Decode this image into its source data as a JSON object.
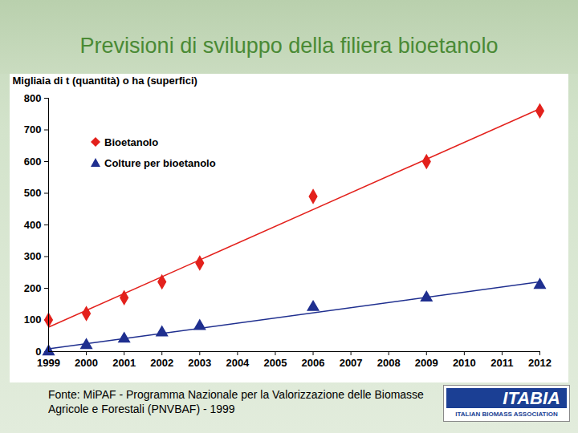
{
  "chart_data": {
    "type": "scatter",
    "title": "Previsioni di sviluppo della filiera bioetanolo",
    "y_label": "Migliaia di t (quantità) o ha (superfici)",
    "x": [
      1999,
      2000,
      2001,
      2002,
      2003,
      2006,
      2009,
      2012
    ],
    "series": [
      {
        "name": "Bioetanolo",
        "color": "#e3211c",
        "marker": "diamond",
        "line_style": "solid",
        "values": [
          100,
          120,
          170,
          220,
          280,
          490,
          600,
          760
        ]
      },
      {
        "name": "Colture per bioetanolo",
        "color": "#1f2f8f",
        "marker": "triangle",
        "line_style": "solid",
        "values": [
          0,
          20,
          40,
          60,
          80,
          140,
          170,
          210
        ]
      }
    ],
    "xlim": [
      1999,
      2012
    ],
    "xticks": [
      1999,
      2000,
      2001,
      2002,
      2003,
      2004,
      2005,
      2006,
      2007,
      2008,
      2009,
      2010,
      2011,
      2012
    ],
    "ylim": [
      0,
      800
    ],
    "yticks": [
      0,
      100,
      200,
      300,
      400,
      500,
      600,
      700,
      800
    ],
    "grid": false,
    "legend": "top-left",
    "source": "Fonte: MiPAF - Programma Nazionale per la Valorizzazione delle Biomasse Agricole e Forestali (PNVBAF) - 1999",
    "logo": "ITABIA",
    "logo_subtitle": "ITALIAN BIOMASS ASSOCIATION"
  }
}
